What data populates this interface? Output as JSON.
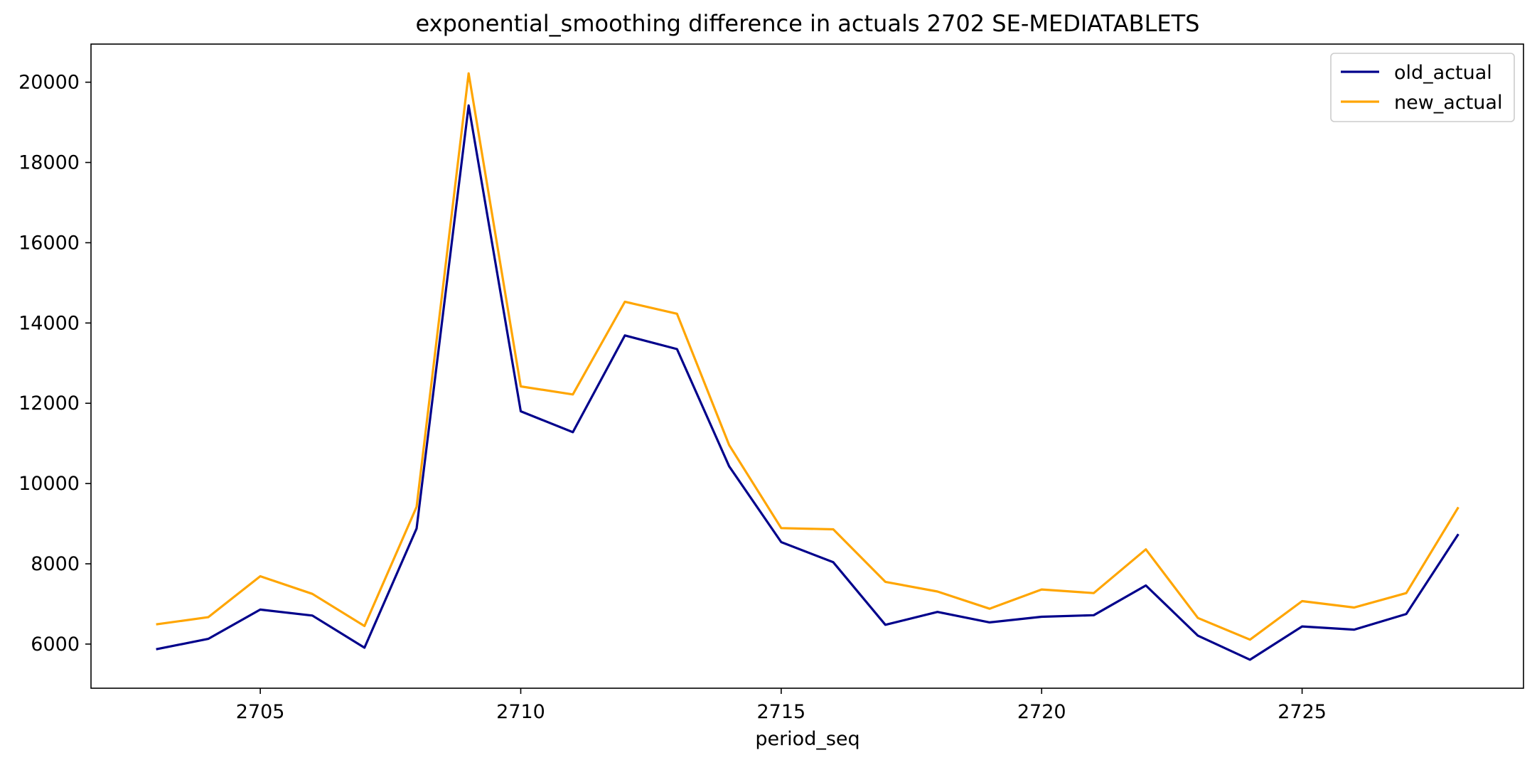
{
  "chart_data": {
    "type": "line",
    "title": "exponential_smoothing difference in actuals 2702 SE-MEDIATABLETS",
    "xlabel": "period_seq",
    "ylabel": "",
    "x": [
      2703,
      2704,
      2705,
      2706,
      2707,
      2708,
      2709,
      2710,
      2711,
      2712,
      2713,
      2714,
      2715,
      2716,
      2717,
      2718,
      2719,
      2720,
      2721,
      2722,
      2723,
      2724,
      2725,
      2726,
      2727,
      2728
    ],
    "xlim": [
      2701.75,
      2729.25
    ],
    "ylim": [
      4900,
      20950
    ],
    "xticks": [
      "2705",
      "2710",
      "2715",
      "2720",
      "2725"
    ],
    "yticks": [
      "6000",
      "8000",
      "10000",
      "12000",
      "14000",
      "16000",
      "18000",
      "20000"
    ],
    "grid": false,
    "legend_position": "top-right",
    "series": [
      {
        "name": "old_actual",
        "color": "#00008b",
        "values": [
          5870,
          6130,
          6860,
          6710,
          5910,
          8880,
          19420,
          11800,
          11280,
          13690,
          13350,
          10430,
          8540,
          8040,
          6480,
          6800,
          6540,
          6680,
          6720,
          7460,
          6210,
          5610,
          6440,
          6360,
          6750,
          8740
        ]
      },
      {
        "name": "new_actual",
        "color": "#ffa500",
        "values": [
          6490,
          6670,
          7690,
          7250,
          6450,
          9420,
          20220,
          12420,
          12220,
          14530,
          14230,
          10960,
          8890,
          8860,
          7550,
          7310,
          6880,
          7360,
          7270,
          8360,
          6650,
          6110,
          7070,
          6910,
          7270,
          9410
        ]
      }
    ]
  }
}
